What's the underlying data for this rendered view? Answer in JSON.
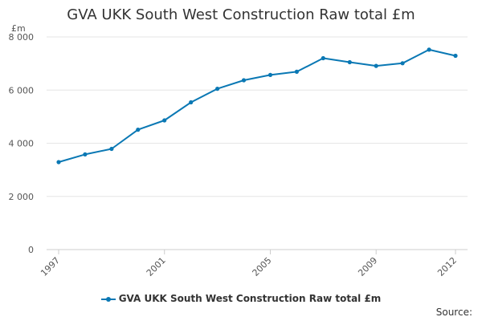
{
  "chart_data": {
    "type": "line",
    "title": "GVA UKK South West Construction Raw total £m",
    "unit_label": "£m",
    "x": [
      1997,
      1998,
      1999,
      2000,
      2001,
      2002,
      2003,
      2004,
      2005,
      2006,
      2007,
      2008,
      2009,
      2010,
      2011,
      2012
    ],
    "series": [
      {
        "name": "GVA UKK South West Construction Raw total £m",
        "values": [
          3290,
          3580,
          3790,
          4510,
          4860,
          5540,
          6050,
          6370,
          6570,
          6690,
          7200,
          7050,
          6910,
          7010,
          7520,
          7290
        ],
        "color": "#0a78b4"
      }
    ],
    "y_ticks": [
      0,
      2000,
      4000,
      6000,
      8000
    ],
    "y_tick_labels": [
      "0",
      "2 000",
      "4 000",
      "6 000",
      "8 000"
    ],
    "x_ticks": [
      1997,
      2001,
      2005,
      2009,
      2012
    ],
    "x_tick_labels": [
      "1997",
      "2001",
      "2005",
      "2009",
      "2012"
    ],
    "xlim": [
      1997,
      2012
    ],
    "ylim": [
      0,
      8000
    ],
    "grid": "horizontal",
    "legend_position": "bottom",
    "source_label": "Source:"
  }
}
